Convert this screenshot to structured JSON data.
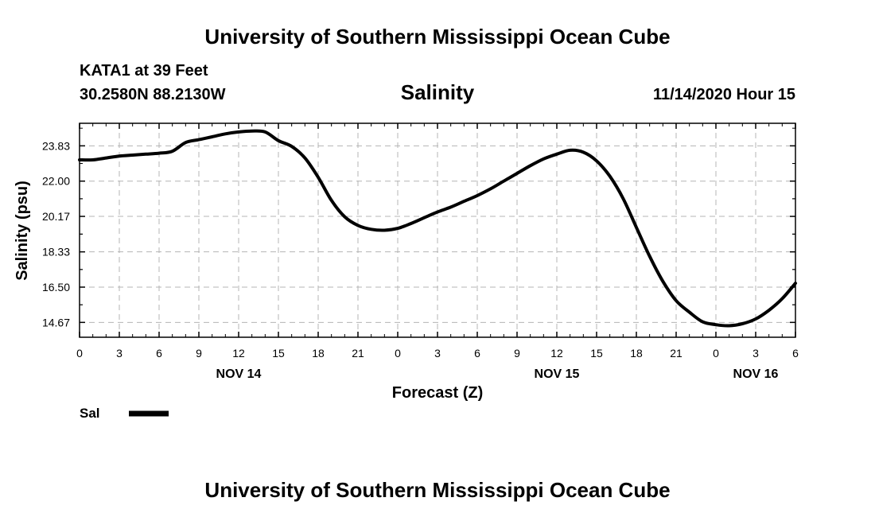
{
  "header": {
    "title": "University of Southern Mississippi Ocean Cube",
    "station": "KATA1 at 39 Feet",
    "location": "30.2580N 88.2130W",
    "variable": "Salinity",
    "timestamp": "11/14/2020 Hour 15"
  },
  "footer": {
    "title": "University of Southern Mississippi Ocean Cube"
  },
  "colors": {
    "line": "#000000",
    "grid": "#b4b4b4",
    "frame": "#000000",
    "background": "#ffffff"
  },
  "chart_data": {
    "type": "line",
    "title": "Salinity",
    "xlabel": "Forecast (Z)",
    "ylabel": "Salinity (psu)",
    "grid": true,
    "legend_position": "bottom-left",
    "x_unit": "hours from 00Z Nov 14",
    "xlim": [
      0,
      54
    ],
    "ylim": [
      13.9,
      25.0
    ],
    "x_ticks": [
      0,
      3,
      6,
      9,
      12,
      15,
      18,
      21,
      24,
      27,
      30,
      33,
      36,
      39,
      42,
      45,
      48,
      51,
      54
    ],
    "x_tick_labels": [
      "0",
      "3",
      "6",
      "9",
      "12",
      "15",
      "18",
      "21",
      "0",
      "3",
      "6",
      "9",
      "12",
      "15",
      "18",
      "21",
      "0",
      "3",
      "6"
    ],
    "y_ticks": [
      14.67,
      16.5,
      18.33,
      20.17,
      22.0,
      23.83
    ],
    "y_tick_labels": [
      "14.67",
      "16.50",
      "18.33",
      "20.17",
      "22.00",
      "23.83"
    ],
    "day_labels": [
      {
        "x": 12,
        "label": "NOV 14"
      },
      {
        "x": 36,
        "label": "NOV 15"
      },
      {
        "x": 51,
        "label": "NOV 16"
      }
    ],
    "series": [
      {
        "name": "Sal",
        "x": [
          0,
          1,
          2,
          3,
          4,
          5,
          6,
          7,
          8,
          9,
          10,
          11,
          12,
          13,
          14,
          15,
          16,
          17,
          18,
          19,
          20,
          21,
          22,
          23,
          24,
          25,
          26,
          27,
          28,
          29,
          30,
          31,
          32,
          33,
          34,
          35,
          36,
          37,
          38,
          39,
          40,
          41,
          42,
          43,
          44,
          45,
          46,
          47,
          48,
          49,
          50,
          51,
          52,
          53,
          54
        ],
        "y": [
          23.1,
          23.1,
          23.2,
          23.3,
          23.35,
          23.4,
          23.45,
          23.55,
          24.0,
          24.15,
          24.3,
          24.45,
          24.55,
          24.6,
          24.55,
          24.1,
          23.8,
          23.2,
          22.2,
          21.0,
          20.15,
          19.7,
          19.5,
          19.45,
          19.55,
          19.8,
          20.1,
          20.4,
          20.65,
          20.95,
          21.25,
          21.6,
          22.0,
          22.4,
          22.8,
          23.15,
          23.4,
          23.6,
          23.5,
          23.05,
          22.25,
          21.1,
          19.6,
          18.1,
          16.8,
          15.8,
          15.2,
          14.7,
          14.55,
          14.5,
          14.6,
          14.85,
          15.3,
          15.9,
          16.7
        ]
      }
    ]
  },
  "legend": {
    "items": [
      {
        "label": "Sal"
      }
    ]
  }
}
